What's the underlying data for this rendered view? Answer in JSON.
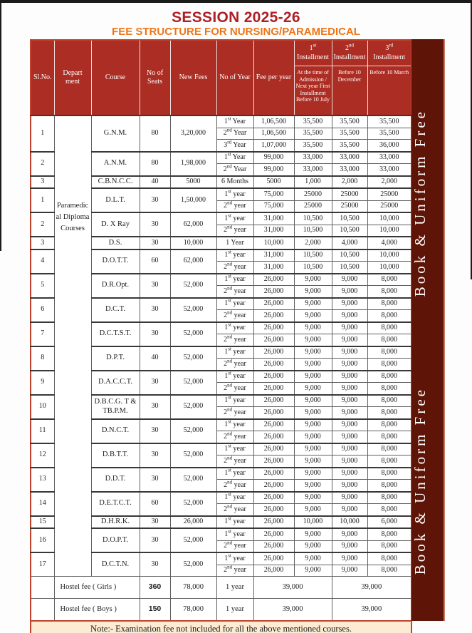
{
  "page": {
    "title": "SESSION 2025-26",
    "subtitle": "FEE STRUCTURE FOR NURSING/PARAMEDICAL"
  },
  "banner": {
    "text": "Book & Uniform Free"
  },
  "colors": {
    "header_bg": "#ac2d23",
    "banner_bg": "#5e1407",
    "banner_border": "#cd7765",
    "title": "#ad2026",
    "subtitle": "#ee7517",
    "note_bg": "#fdecd3",
    "outer_border": "#c2422e",
    "top_bar": "#1b1b1b"
  },
  "table": {
    "headers": {
      "sl": "Sl.No.",
      "dept": "Depart ment",
      "course": "Course",
      "seats": "No of Seats",
      "new_fees": "New Fees",
      "no_of_year": "No of Year",
      "fee_per_year": "Fee per year",
      "inst1": "1st Installment",
      "inst2": "2nd Installment",
      "inst3": "3rd Installment",
      "inst1_sub": "At the time of Admission /  Next year First Installment Before 10 July",
      "inst2_sub": "Before 10 December",
      "inst3_sub": "Before 10 March"
    },
    "department_label": "Paramedical Diploma Courses",
    "sections": [
      {
        "name": "nursing",
        "groups": [
          {
            "sl": "1",
            "course": "G.N.M.",
            "seats": "80",
            "new_fees": "3,20,000",
            "years": [
              {
                "label": "1st Year",
                "fee": "1,06,500",
                "inst1": "35,500",
                "inst2": "35,500",
                "inst3": "35,500"
              },
              {
                "label": "2nd Year",
                "fee": "1,06,500",
                "inst1": "35,500",
                "inst2": "35,500",
                "inst3": "35,500"
              },
              {
                "label": "3rd Year",
                "fee": "1,07,000",
                "inst1": "35,500",
                "inst2": "35,500",
                "inst3": "36,000"
              }
            ]
          },
          {
            "sl": "2",
            "course": "A.N.M.",
            "seats": "80",
            "new_fees": "1,98,000",
            "years": [
              {
                "label": "1st Year",
                "fee": "99,000",
                "inst1": "33,000",
                "inst2": "33,000",
                "inst3": "33,000"
              },
              {
                "label": "2nd Year",
                "fee": "99,000",
                "inst1": "33,000",
                "inst2": "33,000",
                "inst3": "33,000"
              }
            ]
          },
          {
            "sl": "3",
            "course": "C.B.N.C.C.",
            "seats": "40",
            "new_fees": "5000",
            "years": [
              {
                "label": "6 Months",
                "fee": "5000",
                "inst1": "1,000",
                "inst2": "2,000",
                "inst3": "2,000"
              }
            ]
          }
        ]
      },
      {
        "name": "paramedical",
        "groups": [
          {
            "sl": "1",
            "course": "D.L.T.",
            "seats": "30",
            "new_fees": "1,50,000",
            "years": [
              {
                "label": "1st year",
                "fee": "75,000",
                "inst1": "25000",
                "inst2": "25000",
                "inst3": "25000"
              },
              {
                "label": "2nd year",
                "fee": "75,000",
                "inst1": "25000",
                "inst2": "25000",
                "inst3": "25000"
              }
            ]
          },
          {
            "sl": "2",
            "course": "D. X Ray",
            "seats": "30",
            "new_fees": "62,000",
            "years": [
              {
                "label": "1st year",
                "fee": "31,000",
                "inst1": "10,500",
                "inst2": "10,500",
                "inst3": "10,000"
              },
              {
                "label": "2nd year",
                "fee": "31,000",
                "inst1": "10,500",
                "inst2": "10,500",
                "inst3": "10,000"
              }
            ]
          },
          {
            "sl": "3",
            "course": "D.S.",
            "seats": "30",
            "new_fees": "10,000",
            "years": [
              {
                "label": "1 Year",
                "fee": "10,000",
                "inst1": "2,000",
                "inst2": "4,000",
                "inst3": "4,000"
              }
            ]
          },
          {
            "sl": "4",
            "course": "D.O.T.T.",
            "seats": "60",
            "new_fees": "62,000",
            "years": [
              {
                "label": "1st year",
                "fee": "31,000",
                "inst1": "10,500",
                "inst2": "10,500",
                "inst3": "10,000"
              },
              {
                "label": "2nd year",
                "fee": "31,000",
                "inst1": "10,500",
                "inst2": "10,500",
                "inst3": "10,000"
              }
            ]
          },
          {
            "sl": "5",
            "course": "D.R.Opt.",
            "seats": "30",
            "new_fees": "52,000",
            "years": [
              {
                "label": "1st year",
                "fee": "26,000",
                "inst1": "9,000",
                "inst2": "9,000",
                "inst3": "8,000"
              },
              {
                "label": "2nd year",
                "fee": "26,000",
                "inst1": "9,000",
                "inst2": "9,000",
                "inst3": "8,000"
              }
            ]
          },
          {
            "sl": "6",
            "course": "D.C.T.",
            "seats": "30",
            "new_fees": "52,000",
            "years": [
              {
                "label": "1st year",
                "fee": "26,000",
                "inst1": "9,000",
                "inst2": "9,000",
                "inst3": "8,000"
              },
              {
                "label": "2nd year",
                "fee": "26,000",
                "inst1": "9,000",
                "inst2": "9,000",
                "inst3": "8,000"
              }
            ]
          },
          {
            "sl": "7",
            "course": "D.C.T.S.T.",
            "seats": "30",
            "new_fees": "52,000",
            "years": [
              {
                "label": "1st year",
                "fee": "26,000",
                "inst1": "9,000",
                "inst2": "9,000",
                "inst3": "8,000"
              },
              {
                "label": "2nd year",
                "fee": "26,000",
                "inst1": "9,000",
                "inst2": "9,000",
                "inst3": "8,000"
              }
            ]
          },
          {
            "sl": "8",
            "course": "D.P.T.",
            "seats": "40",
            "new_fees": "52,000",
            "years": [
              {
                "label": "1st year",
                "fee": "26,000",
                "inst1": "9,000",
                "inst2": "9,000",
                "inst3": "8,000"
              },
              {
                "label": "2nd year",
                "fee": "26,000",
                "inst1": "9,000",
                "inst2": "9,000",
                "inst3": "8,000"
              }
            ]
          },
          {
            "sl": "9",
            "course": "D.A.C.C.T.",
            "seats": "30",
            "new_fees": "52,000",
            "years": [
              {
                "label": "1st year",
                "fee": "26,000",
                "inst1": "9,000",
                "inst2": "9,000",
                "inst3": "8,000"
              },
              {
                "label": "2nd year",
                "fee": "26,000",
                "inst1": "9,000",
                "inst2": "9,000",
                "inst3": "8,000"
              }
            ]
          },
          {
            "sl": "10",
            "course": "D.B.C.G. T & TB.P.M.",
            "seats": "30",
            "new_fees": "52,000",
            "years": [
              {
                "label": "1st year",
                "fee": "26,000",
                "inst1": "9,000",
                "inst2": "9,000",
                "inst3": "8,000"
              },
              {
                "label": "2nd year",
                "fee": "26,000",
                "inst1": "9,000",
                "inst2": "9,000",
                "inst3": "8,000"
              }
            ]
          },
          {
            "sl": "11",
            "course": "D.N.C.T.",
            "seats": "30",
            "new_fees": "52,000",
            "years": [
              {
                "label": "1st year",
                "fee": "26,000",
                "inst1": "9,000",
                "inst2": "9,000",
                "inst3": "8,000"
              },
              {
                "label": "2nd year",
                "fee": "26,000",
                "inst1": "9,000",
                "inst2": "9,000",
                "inst3": "8,000"
              }
            ]
          },
          {
            "sl": "12",
            "course": "D.B.T.T.",
            "seats": "30",
            "new_fees": "52,000",
            "years": [
              {
                "label": "1st year",
                "fee": "26,000",
                "inst1": "9,000",
                "inst2": "9,000",
                "inst3": "8,000"
              },
              {
                "label": "2nd year",
                "fee": "26,000",
                "inst1": "9,000",
                "inst2": "9,000",
                "inst3": "8,000"
              }
            ]
          },
          {
            "sl": "13",
            "course": "D.D.T.",
            "seats": "30",
            "new_fees": "52,000",
            "years": [
              {
                "label": "1st year",
                "fee": "26,000",
                "inst1": "9,000",
                "inst2": "9,000",
                "inst3": "8,000"
              },
              {
                "label": "2nd year",
                "fee": "26,000",
                "inst1": "9,000",
                "inst2": "9,000",
                "inst3": "8,000"
              }
            ]
          },
          {
            "sl": "14",
            "course": "D.E.T.C.T.",
            "seats": "60",
            "new_fees": "52,000",
            "years": [
              {
                "label": "1st year",
                "fee": "26,000",
                "inst1": "9,000",
                "inst2": "9,000",
                "inst3": "8,000"
              },
              {
                "label": "2nd year",
                "fee": "26,000",
                "inst1": "9,000",
                "inst2": "9,000",
                "inst3": "8,000"
              }
            ]
          },
          {
            "sl": "15",
            "course": "D.H.R.K.",
            "seats": "30",
            "new_fees": "26,000",
            "years": [
              {
                "label": "1st year",
                "fee": "26,000",
                "inst1": "10,000",
                "inst2": "10,000",
                "inst3": "6,000"
              }
            ]
          },
          {
            "sl": "16",
            "course": "D.O.P.T.",
            "seats": "30",
            "new_fees": "52,000",
            "years": [
              {
                "label": "1st year",
                "fee": "26,000",
                "inst1": "9,000",
                "inst2": "9,000",
                "inst3": "8,000"
              },
              {
                "label": "2nd year",
                "fee": "26,000",
                "inst1": "9,000",
                "inst2": "9,000",
                "inst3": "8,000"
              }
            ]
          },
          {
            "sl": "17",
            "course": "D.C.T.N.",
            "seats": "30",
            "new_fees": "52,000",
            "years": [
              {
                "label": "1st year",
                "fee": "26,000",
                "inst1": "9,000",
                "inst2": "9,000",
                "inst3": "8,000"
              },
              {
                "label": "2nd year",
                "fee": "26,000",
                "inst1": "9,000",
                "inst2": "9,000",
                "inst3": "8,000"
              }
            ]
          }
        ]
      }
    ],
    "hostel_rows": [
      {
        "label": "Hostel fee  ( Girls )",
        "seats": "360",
        "new_fees": "78,000",
        "year": "1 year",
        "amount_a": "39,000",
        "amount_b": "39,000"
      },
      {
        "label": "Hostel fee  ( Boys )",
        "seats": "150",
        "new_fees": "78,000",
        "year": "1 year",
        "amount_a": "39,000",
        "amount_b": "39,000"
      }
    ],
    "note": "Note:- Examination fee not included for all the above mentioned courses."
  }
}
